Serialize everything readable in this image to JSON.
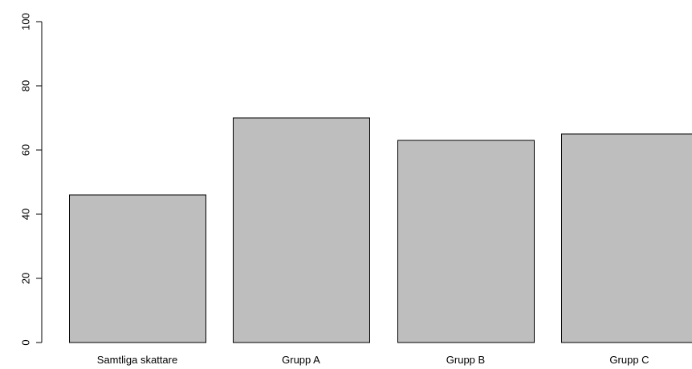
{
  "chart_data": {
    "type": "bar",
    "title": "",
    "xlabel": "",
    "ylabel": "",
    "categories": [
      "Samtliga skattare",
      "Grupp A",
      "Grupp B",
      "Grupp C"
    ],
    "values": [
      46,
      70,
      63,
      65
    ],
    "ylim": [
      0,
      100
    ],
    "yticks": [
      0,
      20,
      40,
      60,
      80,
      100
    ],
    "ytick_labels": [
      "0",
      "20",
      "40",
      "60",
      "80",
      "100"
    ],
    "grid": false,
    "legend": "none",
    "bar_color": "#bebebe",
    "bar_edge_color": "#000000"
  }
}
